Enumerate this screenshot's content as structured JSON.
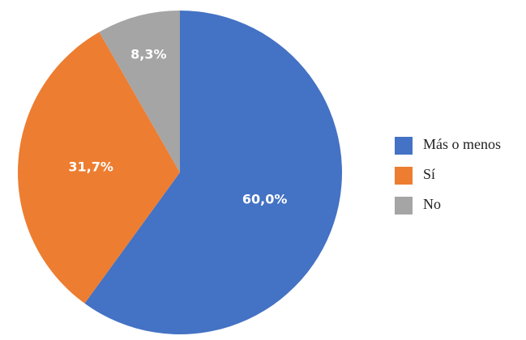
{
  "chart_data": {
    "type": "pie",
    "categories": [
      "Más o menos",
      "Sí",
      "No"
    ],
    "values": [
      60.0,
      31.7,
      8.3
    ],
    "value_labels": [
      "60,0%",
      "31,7%",
      "8,3%"
    ],
    "colors": [
      "#4472c4",
      "#ed7d31",
      "#a5a5a5"
    ],
    "legend": "right"
  }
}
